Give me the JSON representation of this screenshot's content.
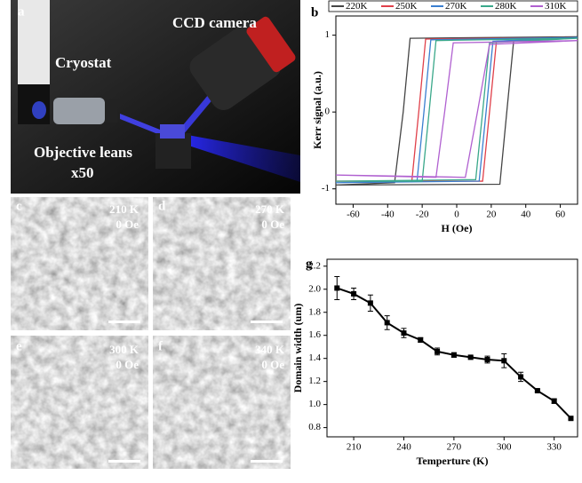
{
  "panels": [
    {
      "label": "a",
      "texts": [
        "CCD camera",
        "Cryostat",
        "Objective leans",
        "x50"
      ]
    },
    {
      "label": "c",
      "texts": [
        "210 K",
        "0 Oe"
      ]
    },
    {
      "label": "d",
      "texts": [
        "270 K",
        "0 Oe"
      ]
    },
    {
      "label": "e",
      "texts": [
        "300 K",
        "0 Oe"
      ]
    },
    {
      "label": "f",
      "texts": [
        "340 K",
        "0 Oe"
      ]
    }
  ],
  "chart_data": [
    {
      "type": "line",
      "label": "b",
      "xlabel": "H (Oe)",
      "ylabel": "Kerr signal (a.u.)",
      "xlim": [
        -70,
        70
      ],
      "ylim": [
        -1.2,
        1.25
      ],
      "xticks": [
        -60,
        -40,
        -20,
        0,
        20,
        40,
        60
      ],
      "yticks": [
        -1,
        0,
        1
      ],
      "series": [
        {
          "name": "220K",
          "color": "#444444",
          "x": [
            70,
            -27,
            -31,
            -36,
            -70,
            -70,
            25,
            29,
            33,
            70
          ],
          "values": [
            0.98,
            0.96,
            0,
            -0.92,
            -0.95,
            -0.95,
            -0.94,
            0,
            0.93,
            0.98
          ]
        },
        {
          "name": "250K",
          "color": "#e0404a",
          "x": [
            70,
            -18,
            -22,
            -26,
            -70,
            -70,
            15,
            19,
            23,
            70
          ],
          "values": [
            0.97,
            0.95,
            0,
            -0.9,
            -0.9,
            -0.9,
            -0.9,
            0,
            0.92,
            0.97
          ]
        },
        {
          "name": "270K",
          "color": "#3a7fd0",
          "x": [
            70,
            -15,
            -19,
            -23,
            -70,
            -70,
            13,
            17,
            21,
            70
          ],
          "values": [
            0.97,
            0.94,
            0,
            -0.9,
            -0.92,
            -0.92,
            -0.9,
            0,
            0.92,
            0.97
          ]
        },
        {
          "name": "280K",
          "color": "#3aa88a",
          "x": [
            70,
            -12,
            -16,
            -20,
            -70,
            -70,
            11,
            15,
            19,
            70
          ],
          "values": [
            0.96,
            0.93,
            0,
            -0.9,
            -0.9,
            -0.9,
            -0.88,
            0,
            0.9,
            0.96
          ]
        },
        {
          "name": "310K",
          "color": "#b060d0",
          "x": [
            70,
            -2,
            -7,
            -12,
            -70,
            -70,
            5,
            12,
            19,
            70
          ],
          "values": [
            0.93,
            0.9,
            0,
            -0.85,
            -0.82,
            -0.82,
            -0.85,
            0,
            0.88,
            0.93
          ]
        }
      ]
    },
    {
      "type": "errorbar",
      "label": "g",
      "xlabel": "Temperture (K)",
      "ylabel": "Domain width (um)",
      "xlim": [
        194,
        344
      ],
      "ylim": [
        0.72,
        2.26
      ],
      "xticks": [
        210,
        240,
        270,
        300,
        330
      ],
      "yticks": [
        0.8,
        {
          "value": 1,
          "label": "1.0"
        },
        1.2,
        1.4,
        1.6,
        1.8,
        {
          "value": 2,
          "label": "2.0"
        },
        2.2
      ],
      "color": "#000000",
      "x": [
        200,
        210,
        220,
        230,
        240,
        250,
        260,
        270,
        280,
        290,
        300,
        310,
        320,
        330,
        340
      ],
      "values": [
        2.01,
        1.96,
        1.88,
        1.71,
        1.62,
        1.56,
        1.46,
        1.43,
        1.41,
        1.39,
        1.38,
        1.24,
        1.12,
        1.03,
        0.88
      ],
      "errors": [
        0.1,
        0.05,
        0.07,
        0.06,
        0.04,
        0.02,
        0.03,
        0.02,
        0.01,
        0.03,
        0.06,
        0.04,
        0.01,
        0.02,
        0.01
      ]
    }
  ]
}
